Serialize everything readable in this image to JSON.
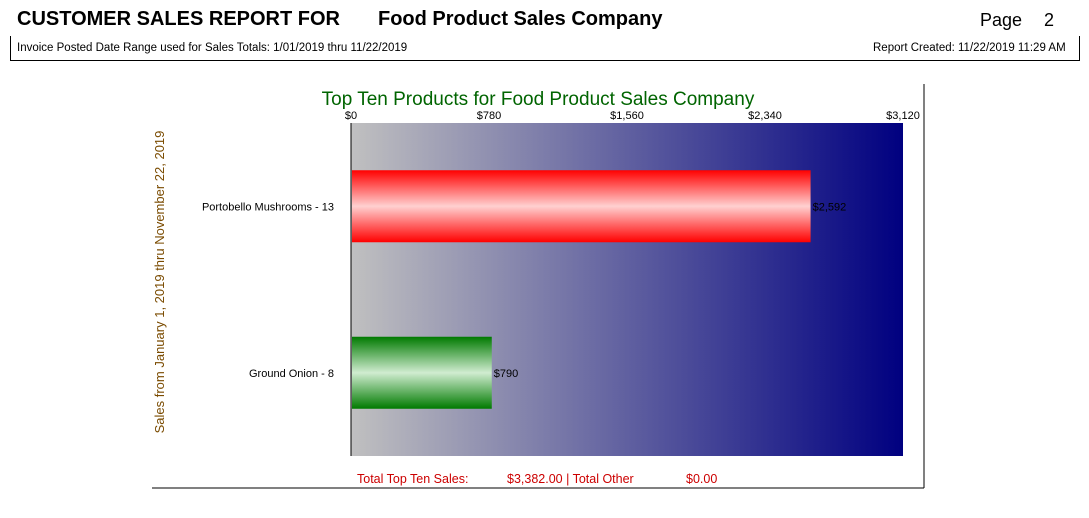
{
  "header": {
    "report_title": "CUSTOMER SALES REPORT FOR",
    "company": "Food Product Sales Company",
    "page_label": "Page",
    "page_number": "2",
    "date_range_text": "Invoice Posted Date Range used for Sales Totals: 1/01/2019   thru  11/22/2019",
    "report_created": "Report Created: 11/22/2019  11:29 AM"
  },
  "chart_data": {
    "type": "bar",
    "orientation": "horizontal",
    "title": "Top Ten Products for Food Product Sales Company",
    "ylabel": "Sales from January  1, 2019    thru November 22, 2019",
    "categories": [
      "Portobello Mushrooms - 13",
      "Ground Onion - 8"
    ],
    "values": [
      2592,
      790
    ],
    "value_labels": [
      "$2,592",
      "$790"
    ],
    "bar_colors": [
      "#ff0000",
      "#007a00"
    ],
    "xlim": [
      0,
      3120
    ],
    "x_ticks": [
      0,
      780,
      1560,
      2340,
      3120
    ],
    "x_tick_labels": [
      "$0",
      "$780",
      "$1,560",
      "$2,340",
      "$3,120"
    ],
    "background_gradient": [
      "#c0c0c0",
      "#000080"
    ],
    "title_color": "#006400",
    "ylabel_color": "#7a4b00",
    "footer": {
      "total_label": "Total Top Ten Sales:",
      "total_value": "$3,382.00 | Total Other",
      "other_value": "$0.00",
      "color": "#cc0000"
    }
  }
}
